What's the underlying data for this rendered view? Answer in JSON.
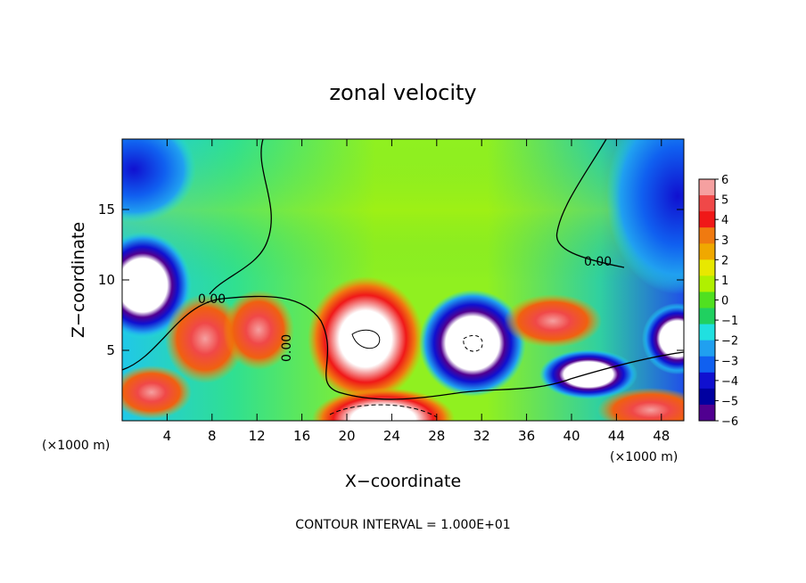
{
  "chart_data": {
    "type": "heatmap",
    "title": "zonal velocity",
    "xlabel": "X−coordinate",
    "ylabel": "Z−coordinate",
    "x_unit_left": "(×1000 m)",
    "x_unit_right": "(×1000 m)",
    "footer": "CONTOUR INTERVAL = 1.000E+01",
    "xlim": [
      0,
      50
    ],
    "ylim": [
      0,
      20
    ],
    "x_ticks": [
      4,
      8,
      12,
      16,
      20,
      24,
      28,
      32,
      36,
      40,
      44,
      48
    ],
    "y_ticks": [
      5,
      10,
      15
    ],
    "contour_labels": [
      "0.00",
      "0.00",
      "0.00"
    ],
    "colorbar": {
      "ticks": [
        6,
        5,
        4,
        3,
        2,
        1,
        0,
        -1,
        -2,
        -3,
        -4,
        -5,
        -6
      ],
      "colors": [
        "#f5a0a0",
        "#f04848",
        "#f01818",
        "#f07a10",
        "#f0a800",
        "#e8e800",
        "#b0f000",
        "#50e020",
        "#20d060",
        "#20e0e0",
        "#20a0f0",
        "#1060f0",
        "#1010d0",
        "#0000a0",
        "#500090"
      ]
    }
  }
}
